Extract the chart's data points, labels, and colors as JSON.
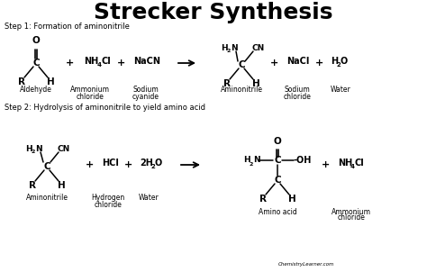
{
  "title": "Strecker Synthesis",
  "title_fontsize": 18,
  "title_fontweight": "bold",
  "bg_color": "#ffffff",
  "text_color": "#000000",
  "step1_label": "Step 1: Formation of aminonitrile",
  "step2_label": "Step 2: Hydrolysis of aminonitrile to yield amino acid",
  "watermark": "ChemistryLearner.com"
}
